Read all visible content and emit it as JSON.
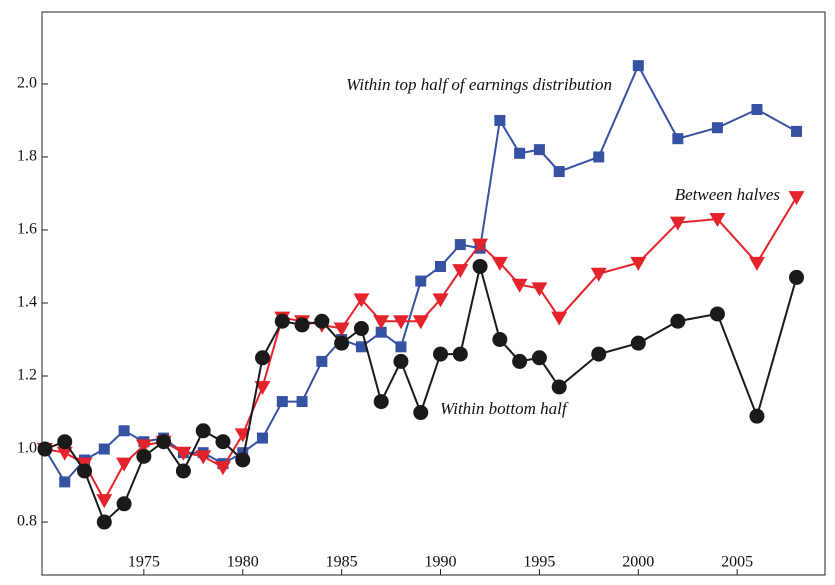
{
  "chart_data": {
    "type": "line",
    "x": [
      1970,
      1971,
      1972,
      1973,
      1974,
      1975,
      1976,
      1977,
      1978,
      1979,
      1980,
      1981,
      1982,
      1983,
      1984,
      1985,
      1986,
      1987,
      1988,
      1989,
      1990,
      1991,
      1992,
      1993,
      1994,
      1995,
      1996,
      1998,
      2000,
      2002,
      2004,
      2006,
      2008
    ],
    "series": [
      {
        "name": "Within top half of earnings distribution",
        "color": "#3552a3",
        "marker": "square",
        "values": [
          1.0,
          0.91,
          0.97,
          1.0,
          1.05,
          1.02,
          1.03,
          0.99,
          0.99,
          0.96,
          0.99,
          1.03,
          1.13,
          1.13,
          1.24,
          1.3,
          1.28,
          1.32,
          1.28,
          1.46,
          1.5,
          1.56,
          1.55,
          1.9,
          1.81,
          1.82,
          1.76,
          1.8,
          2.05,
          1.85,
          1.88,
          1.93,
          1.87
        ]
      },
      {
        "name": "Between halves",
        "color": "#e5232a",
        "marker": "triangle",
        "values": [
          1.0,
          0.99,
          0.96,
          0.86,
          0.96,
          1.01,
          1.02,
          0.99,
          0.98,
          0.95,
          1.04,
          1.17,
          1.36,
          1.35,
          1.34,
          1.33,
          1.41,
          1.35,
          1.35,
          1.35,
          1.41,
          1.49,
          1.56,
          1.51,
          1.45,
          1.44,
          1.36,
          1.48,
          1.51,
          1.62,
          1.63,
          1.51,
          1.69
        ]
      },
      {
        "name": "Within bottom half",
        "color": "#1a1a1a",
        "marker": "circle",
        "values": [
          1.0,
          1.02,
          0.94,
          0.8,
          0.85,
          0.98,
          1.02,
          0.94,
          1.05,
          1.02,
          0.97,
          1.25,
          1.35,
          1.34,
          1.35,
          1.29,
          1.33,
          1.13,
          1.24,
          1.1,
          1.26,
          1.26,
          1.5,
          1.3,
          1.24,
          1.25,
          1.17,
          1.26,
          1.29,
          1.35,
          1.37,
          1.09,
          1.47
        ]
      }
    ],
    "xlim": [
      1969.85,
      2009.44
    ],
    "ylim": [
      0.655,
      2.197
    ],
    "xticks": [
      1975,
      1980,
      1985,
      1990,
      1995,
      2000,
      2005
    ],
    "yticks": [
      0.8,
      {
        "value": 1,
        "label": "1.0"
      },
      1.2,
      1.4,
      1.6,
      1.8,
      {
        "value": 2,
        "label": "2.0"
      }
    ]
  }
}
